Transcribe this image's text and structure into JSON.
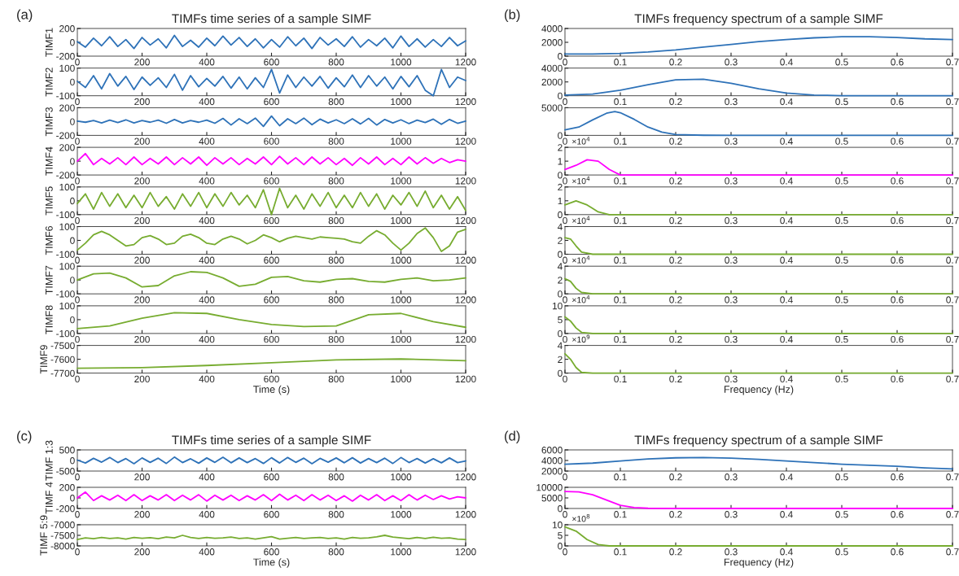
{
  "chart_data": [
    {
      "type": "line",
      "title": "TIMFs time series of a sample SIMF",
      "ylabel": "TIMF1",
      "annotations": [
        "(a)"
      ],
      "xlim": [
        0,
        1200
      ],
      "xticks": [
        0,
        200,
        400,
        600,
        800,
        1000,
        1200
      ],
      "ylim": [
        -200,
        200
      ],
      "yticks": [
        -200,
        0,
        200
      ],
      "x": [
        0,
        25,
        50,
        75,
        100,
        125,
        150,
        175,
        200,
        225,
        250,
        275,
        300,
        325,
        350,
        375,
        400,
        425,
        450,
        475,
        500,
        525,
        550,
        575,
        600,
        625,
        650,
        675,
        700,
        725,
        750,
        775,
        800,
        825,
        850,
        875,
        900,
        925,
        950,
        975,
        1000,
        1025,
        1050,
        1075,
        1100,
        1125,
        1150,
        1175,
        1200
      ],
      "series": [
        {
          "color": "#2e72b8",
          "values": [
            10,
            -70,
            60,
            -50,
            80,
            -60,
            40,
            -90,
            70,
            -40,
            50,
            -80,
            100,
            -60,
            30,
            -70,
            60,
            -50,
            90,
            -40,
            70,
            -60,
            50,
            -80,
            40,
            -70,
            80,
            -50,
            60,
            -90,
            70,
            -40,
            50,
            -60,
            80,
            -70,
            40,
            -50,
            60,
            -80,
            90,
            -60,
            50,
            -70,
            40,
            -60,
            70,
            -50,
            20
          ]
        }
      ]
    },
    {
      "type": "line",
      "ylabel": "TIMF2",
      "xlim": [
        0,
        1200
      ],
      "xticks": [
        0,
        200,
        400,
        600,
        800,
        1000,
        1200
      ],
      "ylim": [
        -100,
        100
      ],
      "yticks": [
        -100,
        0,
        100
      ],
      "x": [
        0,
        25,
        50,
        75,
        100,
        125,
        150,
        175,
        200,
        225,
        250,
        275,
        300,
        325,
        350,
        375,
        400,
        425,
        450,
        475,
        500,
        525,
        550,
        575,
        600,
        625,
        650,
        675,
        700,
        725,
        750,
        775,
        800,
        825,
        850,
        875,
        900,
        925,
        950,
        975,
        1000,
        1025,
        1050,
        1075,
        1100,
        1125,
        1150,
        1175,
        1200
      ],
      "series": [
        {
          "color": "#2e72b8",
          "values": [
            5,
            -40,
            45,
            -50,
            60,
            -30,
            40,
            -55,
            35,
            -25,
            30,
            -40,
            55,
            -60,
            45,
            -35,
            25,
            -30,
            40,
            -45,
            35,
            -50,
            30,
            -40,
            90,
            -80,
            50,
            -40,
            35,
            -30,
            40,
            -45,
            30,
            -35,
            50,
            -40,
            45,
            -30,
            35,
            -50,
            40,
            -35,
            45,
            -60,
            -100,
            90,
            -40,
            35,
            10
          ]
        }
      ]
    },
    {
      "type": "line",
      "ylabel": "TIMF3",
      "xlim": [
        0,
        1200
      ],
      "xticks": [
        0,
        200,
        400,
        600,
        800,
        1000,
        1200
      ],
      "ylim": [
        -200,
        200
      ],
      "yticks": [
        -200,
        0,
        200
      ],
      "x": [
        0,
        25,
        50,
        75,
        100,
        125,
        150,
        175,
        200,
        225,
        250,
        275,
        300,
        325,
        350,
        375,
        400,
        425,
        450,
        475,
        500,
        525,
        550,
        575,
        600,
        625,
        650,
        675,
        700,
        725,
        750,
        775,
        800,
        825,
        850,
        875,
        900,
        925,
        950,
        975,
        1000,
        1025,
        1050,
        1075,
        1100,
        1125,
        1150,
        1175,
        1200
      ],
      "series": [
        {
          "color": "#2e72b8",
          "values": [
            5,
            -10,
            15,
            -20,
            20,
            -15,
            25,
            -20,
            15,
            -10,
            20,
            -25,
            30,
            -20,
            15,
            -10,
            20,
            -25,
            45,
            -50,
            40,
            -30,
            50,
            -70,
            80,
            -60,
            40,
            -30,
            50,
            -45,
            35,
            -20,
            25,
            -30,
            40,
            -35,
            45,
            -50,
            30,
            -20,
            25,
            -30,
            20,
            -15,
            35,
            -40,
            30,
            -25,
            5
          ]
        }
      ]
    },
    {
      "type": "line",
      "ylabel": "TIMF4",
      "xlim": [
        0,
        1200
      ],
      "xticks": [
        0,
        200,
        400,
        600,
        800,
        1000,
        1200
      ],
      "ylim": [
        -200,
        200
      ],
      "yticks": [
        -200,
        0,
        200
      ],
      "x": [
        0,
        25,
        50,
        75,
        100,
        125,
        150,
        175,
        200,
        225,
        250,
        275,
        300,
        325,
        350,
        375,
        400,
        425,
        450,
        475,
        500,
        525,
        550,
        575,
        600,
        625,
        650,
        675,
        700,
        725,
        750,
        775,
        800,
        825,
        850,
        875,
        900,
        925,
        950,
        975,
        1000,
        1025,
        1050,
        1075,
        1100,
        1125,
        1150,
        1175,
        1200
      ],
      "series": [
        {
          "color": "#ff00ff",
          "values": [
            0,
            110,
            -50,
            40,
            -40,
            50,
            -50,
            60,
            -50,
            40,
            -40,
            60,
            -50,
            50,
            -40,
            60,
            -60,
            50,
            -40,
            50,
            -50,
            40,
            -40,
            60,
            -50,
            70,
            -40,
            50,
            -50,
            60,
            -40,
            50,
            -50,
            40,
            -60,
            50,
            -40,
            60,
            -50,
            40,
            -50,
            60,
            -40,
            50,
            -30,
            40,
            -20,
            20,
            0
          ]
        }
      ]
    },
    {
      "type": "line",
      "ylabel": "TIMF5",
      "xlim": [
        0,
        1200
      ],
      "xticks": [
        0,
        200,
        400,
        600,
        800,
        1000,
        1200
      ],
      "ylim": [
        -100,
        100
      ],
      "yticks": [
        -100,
        0,
        100
      ],
      "x": [
        0,
        25,
        50,
        75,
        100,
        125,
        150,
        175,
        200,
        225,
        250,
        275,
        300,
        325,
        350,
        375,
        400,
        425,
        450,
        475,
        500,
        525,
        550,
        575,
        600,
        625,
        650,
        675,
        700,
        725,
        750,
        775,
        800,
        825,
        850,
        875,
        900,
        925,
        950,
        975,
        1000,
        1025,
        1050,
        1075,
        1100,
        1125,
        1150,
        1175,
        1200
      ],
      "series": [
        {
          "color": "#77ac30",
          "values": [
            -20,
            50,
            -60,
            60,
            -40,
            50,
            -50,
            40,
            -50,
            60,
            -40,
            30,
            -60,
            50,
            -40,
            60,
            -50,
            50,
            -40,
            60,
            -30,
            40,
            -50,
            80,
            -100,
            90,
            -50,
            40,
            -60,
            50,
            -40,
            60,
            -50,
            40,
            -50,
            60,
            -40,
            50,
            -60,
            40,
            -30,
            60,
            -40,
            70,
            -50,
            40,
            -60,
            30,
            -70
          ]
        }
      ]
    },
    {
      "type": "line",
      "ylabel": "TIMF6",
      "xlim": [
        0,
        1200
      ],
      "xticks": [
        0,
        200,
        400,
        600,
        800,
        1000,
        1200
      ],
      "ylim": [
        -100,
        100
      ],
      "yticks": [
        -100,
        0,
        100
      ],
      "x": [
        0,
        25,
        50,
        75,
        100,
        125,
        150,
        175,
        200,
        225,
        250,
        275,
        300,
        325,
        350,
        375,
        400,
        425,
        450,
        475,
        500,
        525,
        550,
        575,
        600,
        625,
        650,
        675,
        700,
        725,
        750,
        775,
        800,
        825,
        850,
        875,
        900,
        925,
        950,
        975,
        1000,
        1025,
        1050,
        1075,
        1100,
        1125,
        1150,
        1175,
        1200
      ],
      "series": [
        {
          "color": "#77ac30",
          "values": [
            -70,
            -20,
            40,
            65,
            40,
            0,
            -40,
            -30,
            20,
            35,
            10,
            -30,
            -20,
            30,
            45,
            20,
            -20,
            -30,
            10,
            30,
            10,
            -25,
            0,
            40,
            20,
            -10,
            15,
            30,
            20,
            10,
            25,
            20,
            15,
            10,
            -10,
            -20,
            30,
            70,
            40,
            -20,
            -70,
            -20,
            50,
            90,
            20,
            -80,
            -40,
            60,
            80
          ]
        }
      ]
    },
    {
      "type": "line",
      "ylabel": "TIMF7",
      "xlim": [
        0,
        1200
      ],
      "xticks": [
        0,
        200,
        400,
        600,
        800,
        1000,
        1200
      ],
      "ylim": [
        -100,
        100
      ],
      "yticks": [
        -100,
        0,
        100
      ],
      "x": [
        0,
        50,
        100,
        150,
        200,
        250,
        300,
        350,
        400,
        450,
        500,
        550,
        600,
        650,
        700,
        750,
        800,
        850,
        900,
        950,
        1000,
        1050,
        1100,
        1150,
        1200
      ],
      "series": [
        {
          "color": "#77ac30",
          "values": [
            0,
            45,
            50,
            15,
            -50,
            -40,
            30,
            60,
            55,
            15,
            -45,
            -30,
            20,
            25,
            -5,
            -15,
            5,
            10,
            -10,
            -15,
            5,
            15,
            -5,
            0,
            15
          ]
        }
      ]
    },
    {
      "type": "line",
      "ylabel": "TIMF8",
      "xlim": [
        0,
        1200
      ],
      "xticks": [
        0,
        200,
        400,
        600,
        800,
        1000,
        1200
      ],
      "ylim": [
        -100,
        100
      ],
      "yticks": [
        -100,
        0,
        100
      ],
      "x": [
        0,
        100,
        200,
        300,
        400,
        500,
        600,
        700,
        800,
        900,
        1000,
        1100,
        1200
      ],
      "series": [
        {
          "color": "#77ac30",
          "values": [
            -65,
            -45,
            10,
            50,
            45,
            0,
            -35,
            -50,
            -45,
            35,
            45,
            -15,
            -55
          ]
        }
      ]
    },
    {
      "type": "line",
      "ylabel": "TIMF9",
      "xlabel": "Time (s)",
      "xlim": [
        0,
        1200
      ],
      "xticks": [
        0,
        200,
        400,
        600,
        800,
        1000,
        1200
      ],
      "ylim": [
        -7700,
        -7500
      ],
      "yticks": [
        -7700,
        -7600,
        -7500
      ],
      "x": [
        0,
        200,
        400,
        600,
        800,
        1000,
        1200
      ],
      "series": [
        {
          "color": "#77ac30",
          "values": [
            -7665,
            -7660,
            -7645,
            -7625,
            -7605,
            -7598,
            -7610
          ]
        }
      ]
    },
    {
      "type": "line",
      "title": "TIMFs frequency spectrum of a sample SIMF",
      "annotations": [
        "(b)"
      ],
      "xlim": [
        0,
        0.7
      ],
      "xticks": [
        0,
        0.1,
        0.2,
        0.3,
        0.4,
        0.5,
        0.6,
        0.7
      ],
      "ylim": [
        0,
        4000
      ],
      "yticks": [
        0,
        2000,
        4000
      ],
      "x": [
        0,
        0.05,
        0.1,
        0.15,
        0.2,
        0.25,
        0.3,
        0.35,
        0.4,
        0.45,
        0.5,
        0.55,
        0.6,
        0.65,
        0.7
      ],
      "series": [
        {
          "color": "#2e72b8",
          "values": [
            300,
            320,
            400,
            600,
            900,
            1300,
            1700,
            2100,
            2400,
            2650,
            2800,
            2800,
            2700,
            2500,
            2400
          ]
        }
      ]
    },
    {
      "type": "line",
      "xlim": [
        0,
        0.7
      ],
      "xticks": [
        0,
        0.1,
        0.2,
        0.3,
        0.4,
        0.5,
        0.6,
        0.7
      ],
      "ylim": [
        0,
        4000
      ],
      "yticks": [
        0,
        2000,
        4000
      ],
      "x": [
        0,
        0.05,
        0.1,
        0.15,
        0.2,
        0.25,
        0.3,
        0.35,
        0.4,
        0.45,
        0.5,
        0.55,
        0.6,
        0.65,
        0.7
      ],
      "series": [
        {
          "color": "#2e72b8",
          "values": [
            100,
            250,
            800,
            1600,
            2300,
            2400,
            1800,
            1000,
            400,
            100,
            20,
            5,
            0,
            0,
            0
          ]
        }
      ]
    },
    {
      "type": "line",
      "xlim": [
        0,
        0.7
      ],
      "xticks": [
        0,
        0.1,
        0.2,
        0.3,
        0.4,
        0.5,
        0.6,
        0.7
      ],
      "ylim": [
        0,
        5000
      ],
      "yticks": [
        0,
        5000
      ],
      "x": [
        0,
        0.025,
        0.05,
        0.075,
        0.09,
        0.1,
        0.125,
        0.15,
        0.175,
        0.2,
        0.25,
        0.3,
        0.4,
        0.5,
        0.6,
        0.7
      ],
      "series": [
        {
          "color": "#2e72b8",
          "values": [
            1000,
            1500,
            2800,
            4000,
            4300,
            4100,
            2900,
            1500,
            600,
            150,
            20,
            0,
            0,
            0,
            0,
            0
          ]
        }
      ]
    },
    {
      "type": "line",
      "annotations": [
        "×10$^{4}$"
      ],
      "xlim": [
        0,
        0.7
      ],
      "xticks": [
        0,
        0.1,
        0.2,
        0.3,
        0.4,
        0.5,
        0.6,
        0.7
      ],
      "ylim": [
        0,
        2
      ],
      "yticks": [
        0,
        1,
        2
      ],
      "x": [
        0,
        0.02,
        0.04,
        0.06,
        0.08,
        0.1,
        0.15,
        0.2,
        0.3,
        0.4,
        0.5,
        0.6,
        0.7
      ],
      "series": [
        {
          "color": "#ff00ff",
          "values": [
            0.4,
            0.7,
            1.1,
            1,
            0.4,
            0,
            0,
            0,
            0,
            0,
            0,
            0,
            0
          ]
        }
      ]
    },
    {
      "type": "line",
      "annotations": [
        "×10$^{4}$"
      ],
      "xlim": [
        0,
        0.7
      ],
      "xticks": [
        0,
        0.1,
        0.2,
        0.3,
        0.4,
        0.5,
        0.6,
        0.7
      ],
      "ylim": [
        0,
        2
      ],
      "yticks": [
        0,
        1,
        2
      ],
      "x": [
        0,
        0.02,
        0.04,
        0.06,
        0.08,
        0.1,
        0.15,
        0.2,
        0.3,
        0.4,
        0.5,
        0.6,
        0.7
      ],
      "series": [
        {
          "color": "#77ac30",
          "values": [
            0.7,
            1,
            0.7,
            0.2,
            0,
            0,
            0,
            0,
            0,
            0,
            0,
            0,
            0
          ]
        }
      ]
    },
    {
      "type": "line",
      "annotations": [
        "×10$^{4}$"
      ],
      "xlim": [
        0,
        0.7
      ],
      "xticks": [
        0,
        0.1,
        0.2,
        0.3,
        0.4,
        0.5,
        0.6,
        0.7
      ],
      "ylim": [
        0,
        4
      ],
      "yticks": [
        0,
        2,
        4
      ],
      "x": [
        0,
        0.01,
        0.02,
        0.03,
        0.05,
        0.1,
        0.2,
        0.3,
        0.4,
        0.5,
        0.6,
        0.7
      ],
      "series": [
        {
          "color": "#77ac30",
          "values": [
            2.4,
            2.2,
            1.2,
            0.3,
            0,
            0,
            0,
            0,
            0,
            0,
            0,
            0
          ]
        }
      ]
    },
    {
      "type": "line",
      "annotations": [
        "×10$^{4}$"
      ],
      "xlim": [
        0,
        0.7
      ],
      "xticks": [
        0,
        0.1,
        0.2,
        0.3,
        0.4,
        0.5,
        0.6,
        0.7
      ],
      "ylim": [
        0,
        4
      ],
      "yticks": [
        0,
        2,
        4
      ],
      "x": [
        0,
        0.01,
        0.02,
        0.03,
        0.05,
        0.1,
        0.2,
        0.3,
        0.4,
        0.5,
        0.6,
        0.7
      ],
      "series": [
        {
          "color": "#77ac30",
          "values": [
            2.2,
            1.8,
            0.8,
            0.2,
            0,
            0,
            0,
            0,
            0,
            0,
            0,
            0
          ]
        }
      ]
    },
    {
      "type": "line",
      "annotations": [
        "×10$^{4}$"
      ],
      "xlim": [
        0,
        0.7
      ],
      "xticks": [
        0,
        0.1,
        0.2,
        0.3,
        0.4,
        0.5,
        0.6,
        0.7
      ],
      "ylim": [
        0,
        10
      ],
      "yticks": [
        0,
        5,
        10
      ],
      "x": [
        0,
        0.01,
        0.02,
        0.03,
        0.05,
        0.1,
        0.2,
        0.3,
        0.4,
        0.5,
        0.6,
        0.7
      ],
      "series": [
        {
          "color": "#77ac30",
          "values": [
            6,
            4.5,
            2,
            0.4,
            0,
            0,
            0,
            0,
            0,
            0,
            0,
            0
          ]
        }
      ]
    },
    {
      "type": "line",
      "annotations": [
        "×10$^{9}$"
      ],
      "xlabel": "Frequency (Hz)",
      "xlim": [
        0,
        0.7
      ],
      "xticks": [
        0,
        0.1,
        0.2,
        0.3,
        0.4,
        0.5,
        0.6,
        0.7
      ],
      "ylim": [
        0,
        4
      ],
      "yticks": [
        0,
        2,
        4
      ],
      "x": [
        0,
        0.01,
        0.02,
        0.03,
        0.05,
        0.1,
        0.2,
        0.3,
        0.4,
        0.5,
        0.6,
        0.7
      ],
      "series": [
        {
          "color": "#77ac30",
          "values": [
            2.8,
            2,
            0.8,
            0.1,
            0,
            0,
            0,
            0,
            0,
            0,
            0,
            0
          ]
        }
      ]
    },
    {
      "type": "line",
      "title": "TIMFs time series of a sample SIMF",
      "ylabel": "TIMF 1:3",
      "annotations": [
        "(c)"
      ],
      "xlim": [
        0,
        1200
      ],
      "xticks": [
        0,
        200,
        400,
        600,
        800,
        1000,
        1200
      ],
      "ylim": [
        -500,
        500
      ],
      "yticks": [
        -500,
        0,
        500
      ],
      "x": [
        0,
        25,
        50,
        75,
        100,
        125,
        150,
        175,
        200,
        225,
        250,
        275,
        300,
        325,
        350,
        375,
        400,
        425,
        450,
        475,
        500,
        525,
        550,
        575,
        600,
        625,
        650,
        675,
        700,
        725,
        750,
        775,
        800,
        825,
        850,
        875,
        900,
        925,
        950,
        975,
        1000,
        1025,
        1050,
        1075,
        1100,
        1125,
        1150,
        1175,
        1200
      ],
      "series": [
        {
          "color": "#2e72b8",
          "values": [
            20,
            -120,
            100,
            -80,
            140,
            -100,
            90,
            -150,
            120,
            -90,
            110,
            -140,
            160,
            -100,
            80,
            -130,
            120,
            -90,
            150,
            -110,
            120,
            -100,
            90,
            -140,
            130,
            -120,
            140,
            -90,
            110,
            -150,
            100,
            -80,
            120,
            -110,
            130,
            -120,
            90,
            -100,
            110,
            -140,
            140,
            -100,
            90,
            -120,
            80,
            -110,
            120,
            -100,
            -20
          ]
        }
      ]
    },
    {
      "type": "line",
      "ylabel": "TIMF 4",
      "xlim": [
        0,
        1200
      ],
      "xticks": [
        0,
        200,
        400,
        600,
        800,
        1000,
        1200
      ],
      "ylim": [
        -200,
        200
      ],
      "yticks": [
        -200,
        0,
        200
      ],
      "x": [
        0,
        25,
        50,
        75,
        100,
        125,
        150,
        175,
        200,
        225,
        250,
        275,
        300,
        325,
        350,
        375,
        400,
        425,
        450,
        475,
        500,
        525,
        550,
        575,
        600,
        625,
        650,
        675,
        700,
        725,
        750,
        775,
        800,
        825,
        850,
        875,
        900,
        925,
        950,
        975,
        1000,
        1025,
        1050,
        1075,
        1100,
        1125,
        1150,
        1175,
        1200
      ],
      "series": [
        {
          "color": "#ff00ff",
          "values": [
            0,
            110,
            -50,
            40,
            -40,
            50,
            -50,
            60,
            -50,
            40,
            -40,
            60,
            -50,
            50,
            -40,
            60,
            -60,
            50,
            -40,
            50,
            -50,
            40,
            -40,
            60,
            -50,
            70,
            -40,
            50,
            -50,
            60,
            -40,
            50,
            -50,
            40,
            -60,
            50,
            -40,
            60,
            -50,
            40,
            -50,
            60,
            -40,
            50,
            -30,
            40,
            -20,
            20,
            0
          ]
        }
      ]
    },
    {
      "type": "line",
      "ylabel": "TIMF 5:9",
      "xlabel": "Time (s)",
      "xlim": [
        0,
        1200
      ],
      "xticks": [
        0,
        200,
        400,
        600,
        800,
        1000,
        1200
      ],
      "ylim": [
        -8000,
        -7000
      ],
      "yticks": [
        -8000,
        -7500,
        -7000
      ],
      "x": [
        0,
        25,
        50,
        75,
        100,
        125,
        150,
        175,
        200,
        225,
        250,
        275,
        300,
        325,
        350,
        375,
        400,
        425,
        450,
        475,
        500,
        525,
        550,
        575,
        600,
        625,
        650,
        675,
        700,
        725,
        750,
        775,
        800,
        825,
        850,
        875,
        900,
        925,
        950,
        975,
        1000,
        1025,
        1050,
        1075,
        1100,
        1125,
        1150,
        1175,
        1200
      ],
      "series": [
        {
          "color": "#77ac30",
          "values": [
            -7700,
            -7620,
            -7660,
            -7600,
            -7650,
            -7620,
            -7680,
            -7600,
            -7640,
            -7610,
            -7660,
            -7580,
            -7620,
            -7500,
            -7600,
            -7650,
            -7600,
            -7640,
            -7620,
            -7580,
            -7650,
            -7620,
            -7680,
            -7620,
            -7560,
            -7680,
            -7640,
            -7600,
            -7650,
            -7620,
            -7600,
            -7650,
            -7620,
            -7680,
            -7600,
            -7640,
            -7620,
            -7570,
            -7500,
            -7580,
            -7620,
            -7660,
            -7600,
            -7650,
            -7590,
            -7640,
            -7620,
            -7680,
            -7700
          ]
        }
      ]
    },
    {
      "type": "line",
      "title": "TIMFs frequency spectrum of a sample SIMF",
      "annotations": [
        "(d)"
      ],
      "xlim": [
        0,
        0.7
      ],
      "xticks": [
        0,
        0.1,
        0.2,
        0.3,
        0.4,
        0.5,
        0.6,
        0.7
      ],
      "ylim": [
        2000,
        6000
      ],
      "yticks": [
        2000,
        4000,
        6000
      ],
      "x": [
        0,
        0.05,
        0.1,
        0.15,
        0.2,
        0.25,
        0.3,
        0.35,
        0.4,
        0.45,
        0.5,
        0.55,
        0.6,
        0.65,
        0.7
      ],
      "series": [
        {
          "color": "#2e72b8",
          "values": [
            3300,
            3500,
            3900,
            4300,
            4500,
            4550,
            4450,
            4200,
            3900,
            3600,
            3300,
            3100,
            2900,
            2600,
            2400
          ]
        }
      ]
    },
    {
      "type": "line",
      "xlim": [
        0,
        0.7
      ],
      "xticks": [
        0,
        0.1,
        0.2,
        0.3,
        0.4,
        0.5,
        0.6,
        0.7
      ],
      "ylim": [
        0,
        10000
      ],
      "yticks": [
        0,
        5000,
        10000
      ],
      "x": [
        0,
        0.025,
        0.05,
        0.075,
        0.1,
        0.125,
        0.15,
        0.2,
        0.3,
        0.4,
        0.5,
        0.6,
        0.7
      ],
      "series": [
        {
          "color": "#ff00ff",
          "values": [
            8000,
            7800,
            6500,
            4000,
            1500,
            400,
            100,
            0,
            0,
            0,
            0,
            0,
            0
          ]
        }
      ]
    },
    {
      "type": "line",
      "annotations": [
        "×10$^{8}$"
      ],
      "xlabel": "Frequency (Hz)",
      "xlim": [
        0,
        0.7
      ],
      "xticks": [
        0,
        0.1,
        0.2,
        0.3,
        0.4,
        0.5,
        0.6,
        0.7
      ],
      "ylim": [
        0,
        10
      ],
      "yticks": [
        0,
        5,
        10
      ],
      "x": [
        0,
        0.02,
        0.04,
        0.06,
        0.08,
        0.1,
        0.2,
        0.3,
        0.4,
        0.5,
        0.6,
        0.7
      ],
      "series": [
        {
          "color": "#77ac30",
          "values": [
            9,
            7,
            3,
            0.6,
            0,
            0,
            0,
            0,
            0,
            0,
            0,
            0
          ]
        }
      ]
    }
  ]
}
